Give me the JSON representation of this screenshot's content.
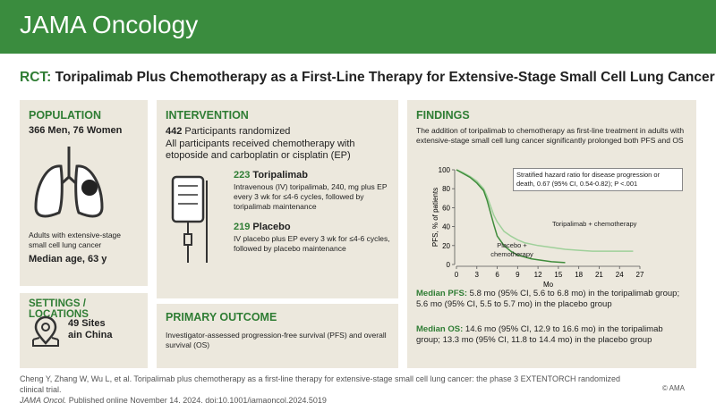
{
  "header": {
    "journal": "JAMA Oncology"
  },
  "title": {
    "label": "RCT:",
    "text": "Toripalimab Plus Chemotherapy as a First-Line Therapy for Extensive-Stage Small Cell Lung Cancer"
  },
  "population": {
    "heading": "POPULATION",
    "counts": "366 Men, 76 Women",
    "description": "Adults with extensive-stage small cell lung cancer",
    "age": "Median age, 63 y"
  },
  "settings": {
    "heading": "SETTINGS / LOCATIONS",
    "sites": "49 Sites ain China"
  },
  "intervention": {
    "heading": "INTERVENTION",
    "randomized_count": 442,
    "randomized_text": "Participants randomized",
    "chemo": "All participants received chemotherapy with etoposide and carboplatin or cisplatin (EP)",
    "arms": [
      {
        "count": 223,
        "name": "Toripalimab",
        "description": "Intravenous (IV) toripalimab, 240, mg plus EP every 3 wk for ≤4-6 cycles, followed by toripalimab maintenance"
      },
      {
        "count": 219,
        "name": "Placebo",
        "description": "IV placebo plus EP every 3 wk for ≤4-6 cycles, followed by placebo maintenance"
      }
    ]
  },
  "primary_outcome": {
    "heading": "PRIMARY OUTCOME",
    "text": "Investigator-assessed progression-free survival (PFS) and overall survival (OS)"
  },
  "findings": {
    "heading": "FINDINGS",
    "summary": "The addition of toripalimab to chemotherapy as first-line treatment in adults with extensive-stage small cell lung cancer significantly prolonged both PFS and OS",
    "chart": {
      "type": "line",
      "x_label": "Mo",
      "y_label": "PFS, % of patients",
      "annotation": "Stratified hazard ratio for disease progression or death, 0.67 (95% CI, 0.54-0.82); P <.001",
      "xlim": [
        0,
        27
      ],
      "xticks": [
        0,
        3,
        6,
        9,
        12,
        15,
        18,
        21,
        24,
        27
      ],
      "ylim": [
        0,
        100
      ],
      "yticks": [
        0,
        20,
        40,
        60,
        80,
        100
      ],
      "series": [
        {
          "name": "Toripalimab + chemotherapy",
          "color": "#9fd09a",
          "x": [
            0,
            1,
            2,
            3,
            4,
            4.5,
            5,
            5.5,
            6,
            6.5,
            7,
            8,
            9,
            10,
            12,
            14,
            16,
            18,
            20,
            22,
            24,
            26
          ],
          "values": [
            100,
            97,
            93,
            88,
            80,
            72,
            62,
            52,
            45,
            40,
            35,
            30,
            26,
            23,
            20,
            18,
            16,
            15,
            14,
            14,
            14,
            14
          ]
        },
        {
          "name": "Placebo + chemotherapy",
          "color": "#3f8c3b",
          "x": [
            0,
            1,
            2,
            3,
            4,
            4.5,
            5,
            5.5,
            6,
            7,
            8,
            9,
            10,
            11,
            12,
            14,
            16
          ],
          "values": [
            100,
            96,
            92,
            86,
            78,
            68,
            55,
            42,
            30,
            20,
            14,
            10,
            8,
            6,
            5,
            3,
            2
          ]
        }
      ]
    },
    "results": [
      {
        "label": "Median PFS:",
        "text": "5.8 mo (95% CI, 5.6 to 6.8 mo) in the toripalimab group; 5.6 mo (95% CI, 5.5 to 5.7 mo) in the placebo group"
      },
      {
        "label": "Median OS:",
        "text": "14.6 mo (95% CI, 12.9 to 16.6 mo) in the toripalimab group; 13.3 mo (95% CI, 11.8 to 14.4 mo) in the placebo group"
      }
    ]
  },
  "citation": {
    "text": "Cheng Y, Zhang W, Wu L, et al. Toripalimab plus chemotherapy as a first-line therapy for extensive-stage small cell lung cancer: the phase 3 EXTENTORCH randomized clinical trial.",
    "journal": "JAMA Oncol.",
    "details": "Published online November 14, 2024. doi:10.1001/jamaoncol.2024.5019",
    "copyright": "© AMA"
  }
}
